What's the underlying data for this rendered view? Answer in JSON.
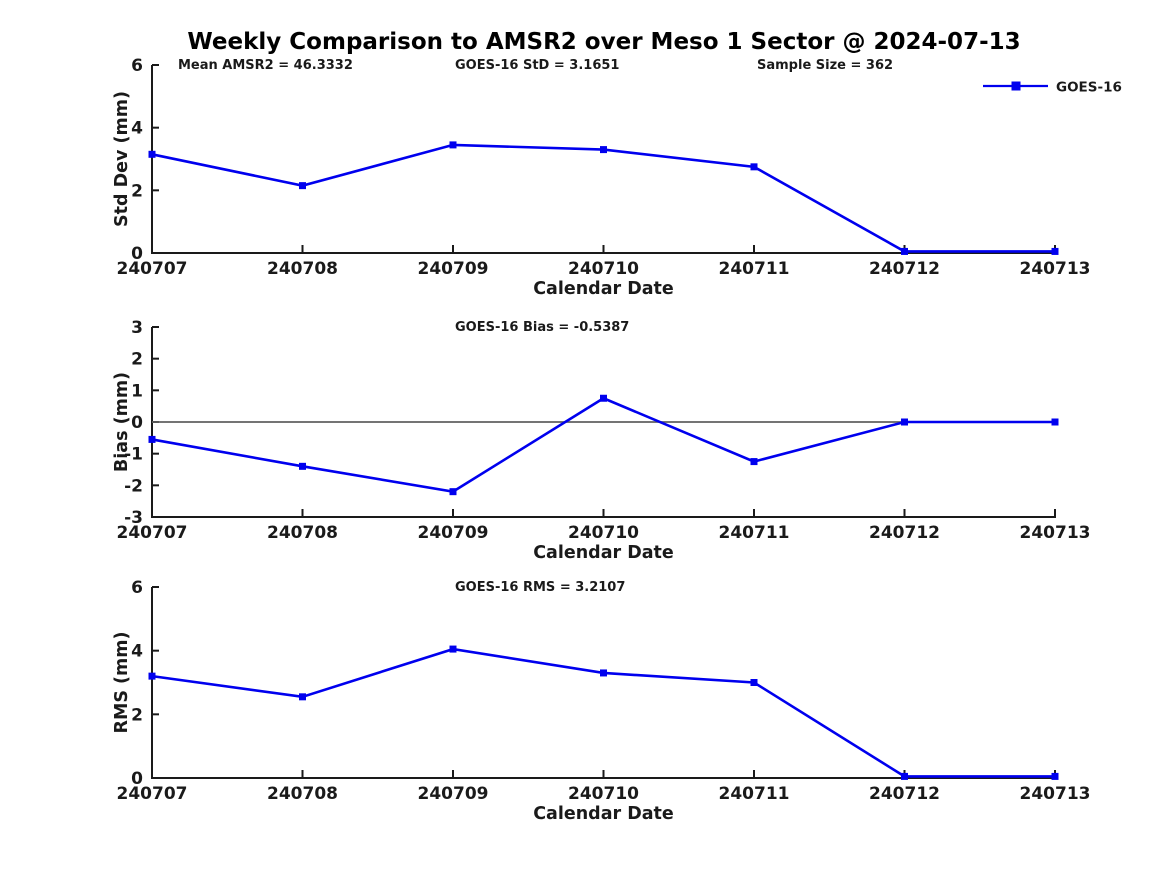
{
  "title": "Weekly Comparison to AMSR2 over Meso 1 Sector @ 2024-07-13",
  "colors": {
    "series": "#0000ee",
    "axis": "#1a1a1a",
    "text": "#1a1a1a",
    "zero_line": "#606060",
    "background": "#ffffff"
  },
  "legend": {
    "label": "GOES-16",
    "position": "top-right"
  },
  "chart_data": [
    {
      "type": "line",
      "title": "",
      "ylabel": "Std Dev (mm)",
      "xlabel": "Calendar Date",
      "categories": [
        "240707",
        "240708",
        "240709",
        "240710",
        "240711",
        "240712",
        "240713"
      ],
      "series": [
        {
          "name": "GOES-16",
          "values": [
            3.15,
            2.15,
            3.45,
            3.3,
            2.75,
            0.05,
            0.05
          ]
        }
      ],
      "ylim": [
        0,
        6
      ],
      "yticks": [
        0,
        2,
        4,
        6
      ],
      "annotations": [
        "Mean AMSR2 = 46.3332",
        "GOES-16 StD = 3.1651",
        "Sample Size = 362"
      ],
      "zero_line": false,
      "grid": false,
      "legend_entry": "GOES-16"
    },
    {
      "type": "line",
      "title": "",
      "ylabel": "Bias (mm)",
      "xlabel": "Calendar Date",
      "categories": [
        "240707",
        "240708",
        "240709",
        "240710",
        "240711",
        "240712",
        "240713"
      ],
      "series": [
        {
          "name": "GOES-16",
          "values": [
            -0.55,
            -1.4,
            -2.2,
            0.75,
            -1.25,
            0,
            0
          ]
        }
      ],
      "ylim": [
        -3,
        3
      ],
      "yticks": [
        -3,
        -2,
        -1,
        0,
        1,
        2,
        3
      ],
      "annotations": [
        "GOES-16 Bias  = -0.5387"
      ],
      "zero_line": true,
      "grid": false
    },
    {
      "type": "line",
      "title": "",
      "ylabel": "RMS (mm)",
      "xlabel": "Calendar Date",
      "categories": [
        "240707",
        "240708",
        "240709",
        "240710",
        "240711",
        "240712",
        "240713"
      ],
      "series": [
        {
          "name": "GOES-16",
          "values": [
            3.2,
            2.55,
            4.05,
            3.3,
            3.0,
            0.05,
            0.05
          ]
        }
      ],
      "ylim": [
        0,
        6
      ],
      "yticks": [
        0,
        2,
        4,
        6
      ],
      "annotations": [
        "GOES-16 RMS = 3.2107"
      ],
      "zero_line": false,
      "grid": false
    }
  ]
}
